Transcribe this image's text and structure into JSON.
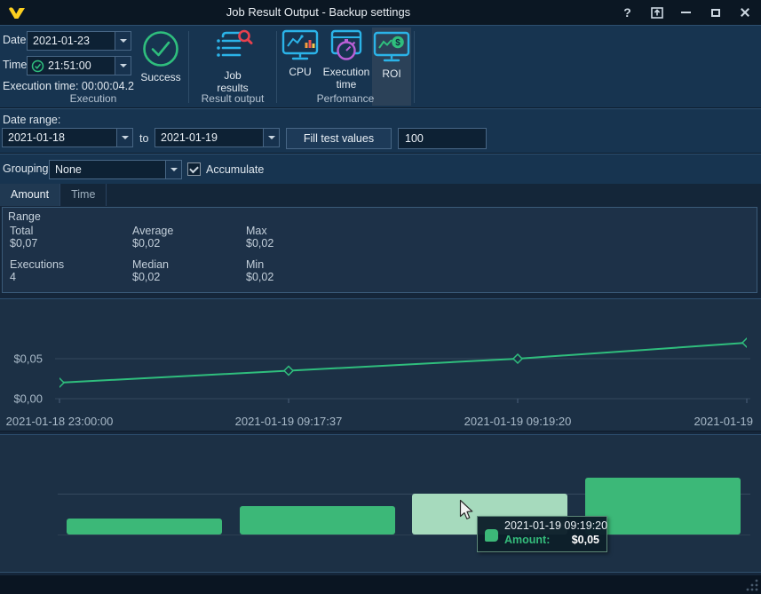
{
  "window": {
    "title": "Job Result Output - Backup settings",
    "controls": {
      "help": "?"
    }
  },
  "ribbon": {
    "execution_group": {
      "label": "Execution",
      "date_label": "Date:",
      "date_value": "2021-01-23",
      "time_label": "Time:",
      "time_value": "21:51:00",
      "execution_time": "Execution time: 00:00:04.2",
      "status_label": "Success"
    },
    "result_output_group": {
      "label": "Result output",
      "job_results_label": "Job results"
    },
    "performance_group": {
      "label": "Perfomance",
      "cpu_label": "CPU",
      "execution_time_label": "Execution time",
      "roi_label": "ROI",
      "selected": "ROI"
    }
  },
  "filters": {
    "date_range_label": "Date range:",
    "from_value": "2021-01-18",
    "to_text": "to",
    "to_value": "2021-01-19",
    "fill_button": "Fill test values",
    "count_value": "100",
    "grouping_label": "Grouping:",
    "grouping_value": "None",
    "accumulate_label": "Accumulate",
    "accumulate_checked": true
  },
  "tabs": [
    {
      "label": "Amount",
      "active": true
    },
    {
      "label": "Time",
      "active": false
    }
  ],
  "stats": {
    "group_title": "Range",
    "items": [
      {
        "label": "Total",
        "value": "$0,07"
      },
      {
        "label": "Average",
        "value": "$0,02"
      },
      {
        "label": "Max",
        "value": "$0,02"
      },
      {
        "label": "Executions",
        "value": "4"
      },
      {
        "label": "Median",
        "value": "$0,02"
      },
      {
        "label": "Min",
        "value": "$0,02"
      }
    ]
  },
  "chart_data": [
    {
      "type": "line",
      "x": [
        "2021-01-18 23:00:00",
        "2021-01-19 09:17:37",
        "2021-01-19 09:19:20",
        "2021-01-19"
      ],
      "values": [
        0.02,
        0.035,
        0.05,
        0.07
      ],
      "y_ticks": [
        {
          "label": "$0,05",
          "value": 0.05
        },
        {
          "label": "$0,00",
          "value": 0
        }
      ],
      "ylim": [
        0,
        0.08
      ],
      "grid": true,
      "legend": false
    },
    {
      "type": "bar",
      "categories": [
        "2021-01-18 23:00:00",
        "2021-01-19 09:17:37",
        "2021-01-19 09:19:20",
        "2021-01-19"
      ],
      "values": [
        0.02,
        0.035,
        0.05,
        0.07
      ],
      "highlighted_index": 2,
      "ylim": [
        0,
        0.08
      ],
      "grid": true,
      "legend": false
    }
  ],
  "tooltip": {
    "date": "2021-01-19 09:19:20",
    "series": "Amount:",
    "value": "$0,05"
  },
  "colors": {
    "series_green": "#2fbe7d",
    "bar_green": "#3cb878",
    "bar_highlight": "#a6dabd",
    "panel_bg": "#1c3045",
    "accent_cyan": "#2bb3e8",
    "logo_yellow": "#fccf1f",
    "success_green": "#2fbe7d",
    "magnifier_red": "#e8414e",
    "stopwatch_purple": "#b95fd6",
    "tooltip_series_green": "#35bd7c"
  }
}
